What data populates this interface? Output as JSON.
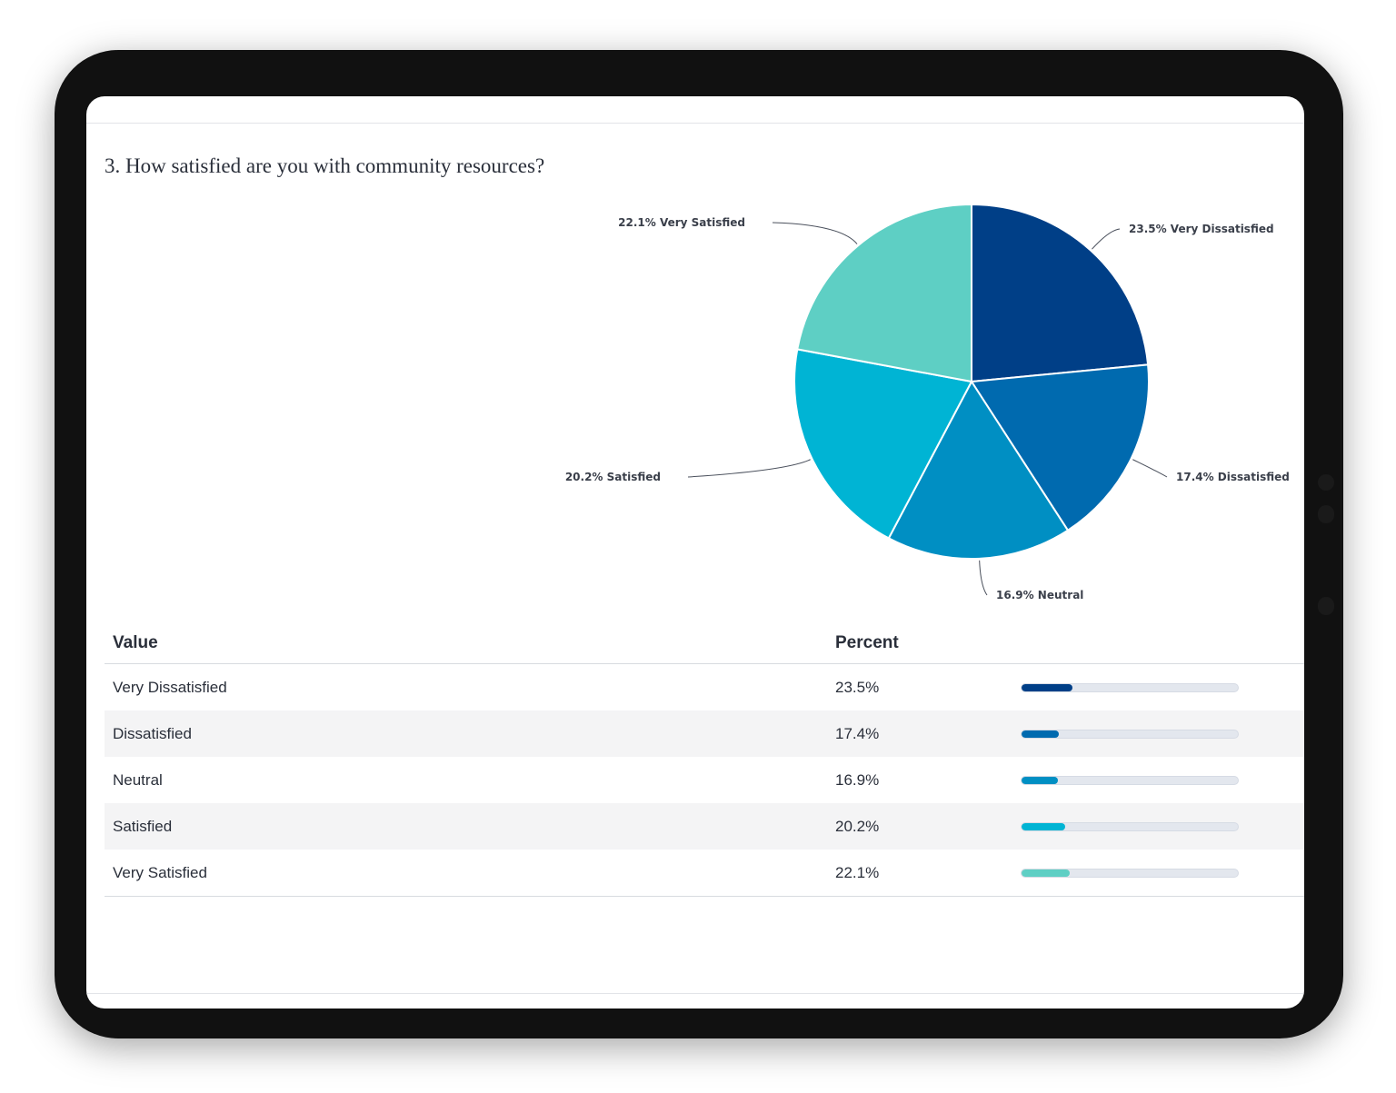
{
  "question": "3. How satisfied are you with community resources?",
  "table": {
    "headers": {
      "value": "Value",
      "percent": "Percent"
    }
  },
  "chart_data": {
    "type": "pie",
    "title": "3. How satisfied are you with community resources?",
    "slices": [
      {
        "label": "Very Dissatisfied",
        "value": 23.5,
        "display": "23.5%",
        "chart_label": "23.5% Very Dissatisfied",
        "color": "#003f87"
      },
      {
        "label": "Dissatisfied",
        "value": 17.4,
        "display": "17.4%",
        "chart_label": "17.4% Dissatisfied",
        "color": "#006aaf"
      },
      {
        "label": "Neutral",
        "value": 16.9,
        "display": "16.9%",
        "chart_label": "16.9% Neutral",
        "color": "#008fc3"
      },
      {
        "label": "Satisfied",
        "value": 20.2,
        "display": "20.2%",
        "chart_label": "20.2% Satisfied",
        "color": "#00b4d4"
      },
      {
        "label": "Very Satisfied",
        "value": 22.1,
        "display": "22.1%",
        "chart_label": "22.1% Very Satisfied",
        "color": "#5ecfc4"
      }
    ]
  }
}
